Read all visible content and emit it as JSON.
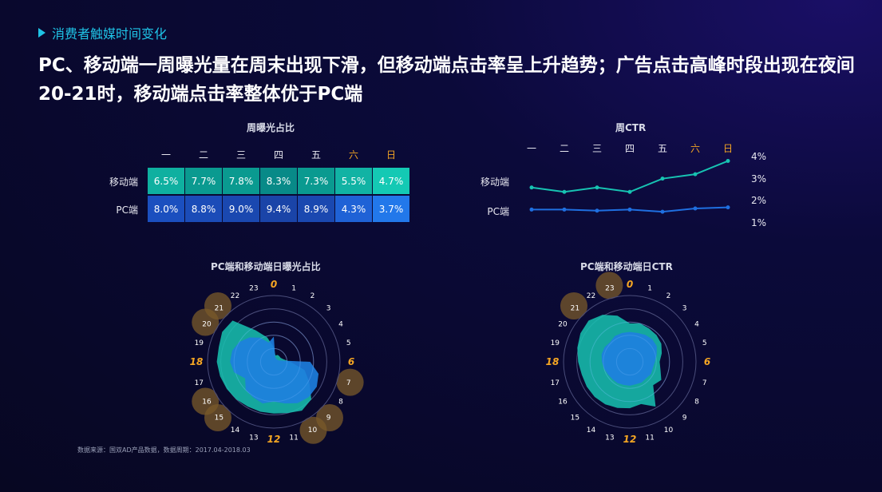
{
  "section_label": "消费者触媒时间变化",
  "headline": "PC、移动端一周曝光量在周末出现下滑，但移动端点击率呈上升趋势；广告点击高峰时段出现在夜间20-21时，移动端点击率整体优于PC端",
  "source_note": "数据来源：国双AD产品数据，数据周期：2017.04-2018.03",
  "colors": {
    "mobile": "#17c3b2",
    "pc": "#1f6fe0",
    "weekend": "#f5a623",
    "highlight": "#7a5a2a"
  },
  "chart_data": [
    {
      "type": "heatmap",
      "title": "周曝光占比",
      "columns": [
        "一",
        "二",
        "三",
        "四",
        "五",
        "六",
        "日"
      ],
      "rows": [
        {
          "label": "移动端",
          "display": [
            "6.5%",
            "7.7%",
            "7.8%",
            "8.3%",
            "7.3%",
            "5.5%",
            "4.7%"
          ],
          "values": [
            6.5,
            7.7,
            7.8,
            8.3,
            7.3,
            5.5,
            4.7
          ]
        },
        {
          "label": "PC端",
          "display": [
            "8.0%",
            "8.8%",
            "9.0%",
            "9.4%",
            "8.9%",
            "4.3%",
            "3.7%"
          ],
          "values": [
            8.0,
            8.8,
            9.0,
            9.4,
            8.9,
            4.3,
            3.7
          ]
        }
      ]
    },
    {
      "type": "line",
      "title": "周CTR",
      "categories": [
        "一",
        "二",
        "三",
        "四",
        "五",
        "六",
        "日"
      ],
      "yticks": [
        "4%",
        "3%",
        "2%",
        "1%"
      ],
      "series": [
        {
          "name": "移动端",
          "values": [
            2.6,
            2.4,
            2.6,
            2.4,
            3.0,
            3.2,
            3.8
          ]
        },
        {
          "name": "PC端",
          "values": [
            1.6,
            1.6,
            1.55,
            1.6,
            1.5,
            1.65,
            1.7
          ]
        }
      ]
    },
    {
      "type": "area",
      "subtype": "radar",
      "title": "PC端和移动端日曝光占比",
      "hours": [
        "0",
        "1",
        "2",
        "3",
        "4",
        "5",
        "6",
        "7",
        "8",
        "9",
        "10",
        "11",
        "12",
        "13",
        "14",
        "15",
        "16",
        "17",
        "18",
        "19",
        "20",
        "21",
        "22",
        "23"
      ],
      "highlight_hours": [
        "7",
        "9",
        "10",
        "15",
        "16",
        "20",
        "21"
      ],
      "series": [
        {
          "name": "移动端",
          "values": [
            0.22,
            0.1,
            0.12,
            0.12,
            0.12,
            0.15,
            0.25,
            0.48,
            0.62,
            0.8,
            0.85,
            0.8,
            0.78,
            0.78,
            0.78,
            0.8,
            0.82,
            0.84,
            0.86,
            0.86,
            0.9,
            0.88,
            0.55,
            0.38
          ]
        },
        {
          "name": "PC端",
          "values": [
            0.38,
            0.08,
            0.06,
            0.06,
            0.06,
            0.08,
            0.55,
            0.7,
            0.75,
            0.75,
            0.72,
            0.65,
            0.6,
            0.65,
            0.62,
            0.6,
            0.5,
            0.62,
            0.66,
            0.65,
            0.6,
            0.52,
            0.42,
            0.3
          ]
        }
      ]
    },
    {
      "type": "area",
      "subtype": "radar",
      "title": "PC端和移动端日CTR",
      "hours": [
        "0",
        "1",
        "2",
        "3",
        "4",
        "5",
        "6",
        "7",
        "8",
        "9",
        "10",
        "11",
        "12",
        "13",
        "14",
        "15",
        "16",
        "17",
        "18",
        "19",
        "20",
        "21",
        "22",
        "23"
      ],
      "highlight_hours": [
        "21",
        "23"
      ],
      "series": [
        {
          "name": "移动端",
          "values": [
            0.58,
            0.6,
            0.58,
            0.57,
            0.55,
            0.5,
            0.45,
            0.48,
            0.55,
            0.5,
            0.78,
            0.66,
            0.7,
            0.72,
            0.74,
            0.75,
            0.75,
            0.75,
            0.78,
            0.82,
            0.86,
            0.88,
            0.82,
            0.72
          ]
        },
        {
          "name": "PC端",
          "values": [
            0.45,
            0.45,
            0.47,
            0.48,
            0.47,
            0.42,
            0.38,
            0.36,
            0.37,
            0.35,
            0.36,
            0.35,
            0.36,
            0.36,
            0.37,
            0.37,
            0.38,
            0.4,
            0.42,
            0.44,
            0.44,
            0.42,
            0.45,
            0.45
          ]
        }
      ]
    }
  ]
}
